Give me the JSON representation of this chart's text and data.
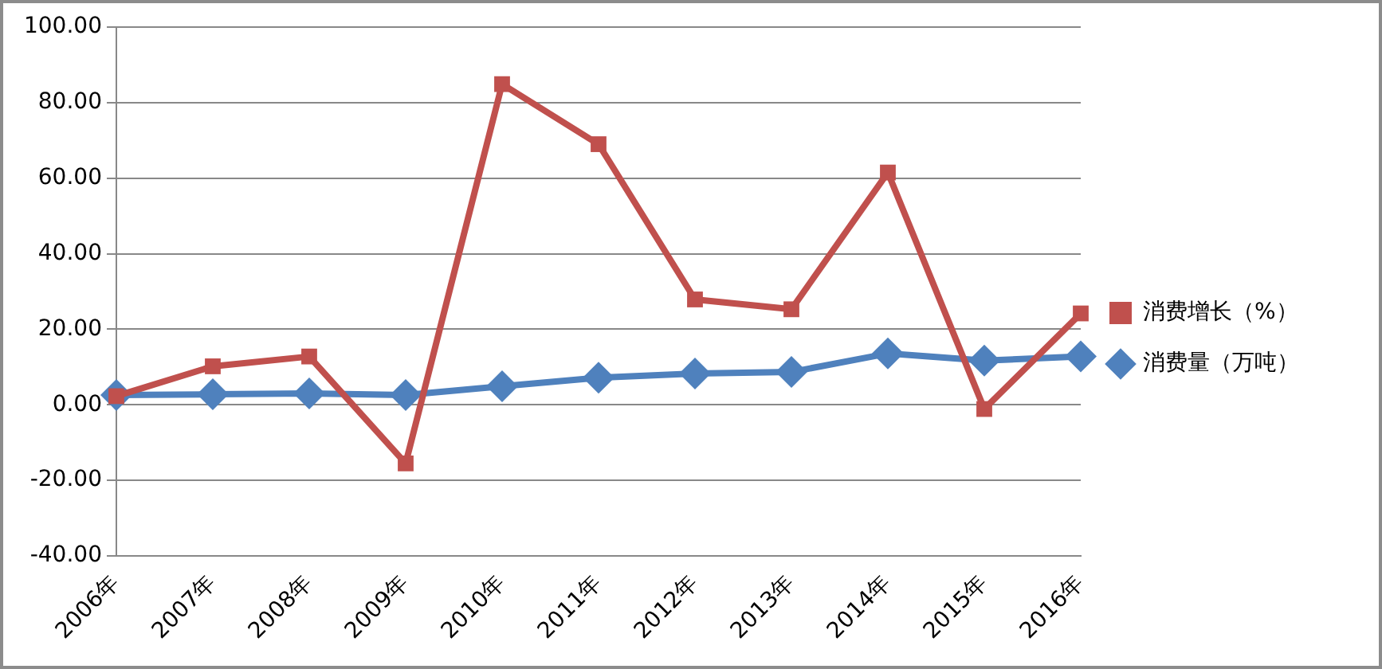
{
  "chart_data": {
    "type": "line",
    "categories": [
      "2006年",
      "2007年",
      "2008年",
      "2009年",
      "2010年",
      "2011年",
      "2012年",
      "2013年",
      "2014年",
      "2015年",
      "2016年"
    ],
    "series": [
      {
        "name": "消费增长（%）",
        "color": "#c0504d",
        "marker": "square",
        "values": [
          2.3,
          10.2,
          12.8,
          -15.5,
          84.9,
          69.0,
          27.9,
          25.3,
          61.5,
          -1.1,
          24.2
        ]
      },
      {
        "name": "消费量（万吨）",
        "color": "#4f81bd",
        "marker": "diamond",
        "values": [
          2.6,
          2.8,
          3.0,
          2.6,
          4.9,
          7.2,
          8.3,
          8.7,
          13.6,
          11.7,
          12.8
        ]
      }
    ],
    "ylim": [
      -40,
      100
    ],
    "yticks": [
      {
        "value": -40,
        "label": "-40.00"
      },
      {
        "value": -20,
        "label": "-20.00"
      },
      {
        "value": 0,
        "label": "0.00"
      },
      {
        "value": 20,
        "label": "20.00"
      },
      {
        "value": 40,
        "label": "40.00"
      },
      {
        "value": 60,
        "label": "60.00"
      },
      {
        "value": 80,
        "label": "80.00"
      },
      {
        "value": 100,
        "label": "100.00"
      }
    ],
    "grid": "y",
    "legend": "right"
  }
}
